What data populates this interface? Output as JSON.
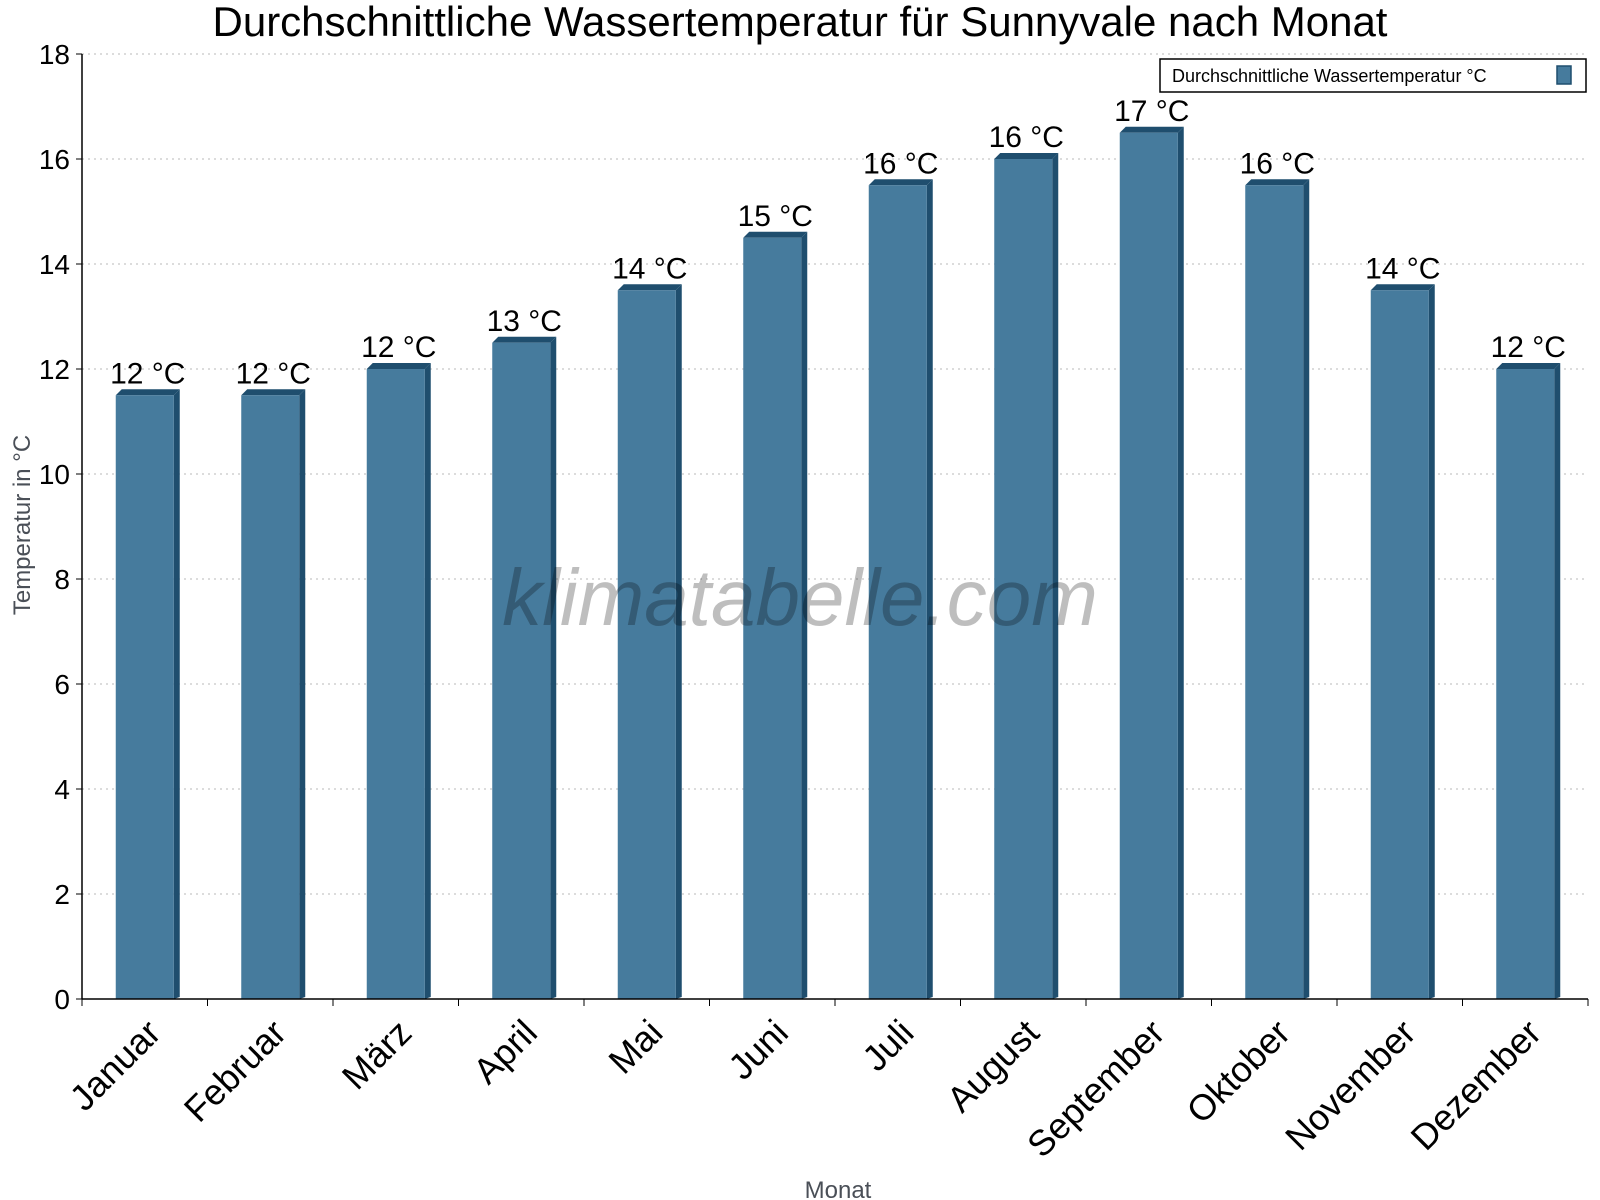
{
  "chart_data": {
    "type": "bar",
    "title": "Durchschnittliche Wassertemperatur für Sunnyvale nach Monat",
    "xlabel": "Monat",
    "ylabel": "Temperatur in °C",
    "categories": [
      "Januar",
      "Februar",
      "März",
      "April",
      "Mai",
      "Juni",
      "Juli",
      "August",
      "September",
      "Oktober",
      "November",
      "Dezember"
    ],
    "series": [
      {
        "name": "Durchschnittliche Wassertemperatur °C",
        "values": [
          11.5,
          11.5,
          12.0,
          12.5,
          13.5,
          14.5,
          15.5,
          16.0,
          16.5,
          15.5,
          13.5,
          12.0
        ],
        "labels": [
          "12 °C",
          "12 °C",
          "12 °C",
          "13 °C",
          "14 °C",
          "15 °C",
          "16 °C",
          "16 °C",
          "17 °C",
          "16 °C",
          "14 °C",
          "12 °C"
        ],
        "color": "#467b9d",
        "shade_color": "#1f4e6e"
      }
    ],
    "ylim": [
      0,
      18
    ],
    "yticks": [
      0,
      2,
      4,
      6,
      8,
      10,
      12,
      14,
      16,
      18
    ],
    "grid": true,
    "legend_position": "top-right"
  },
  "watermark": "klimatabelle.com"
}
